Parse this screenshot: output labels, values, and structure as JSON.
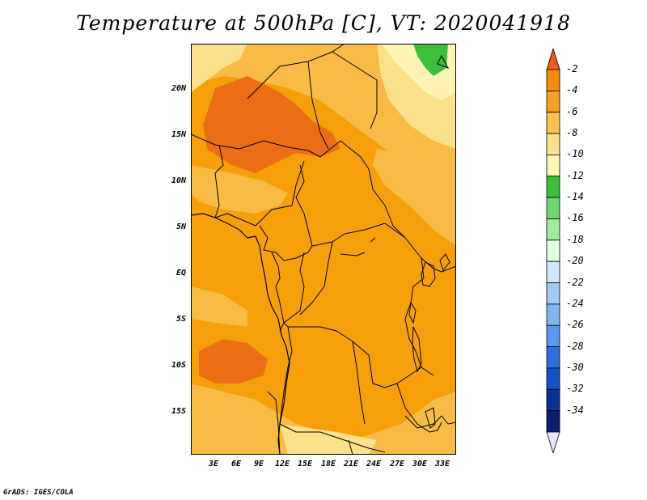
{
  "title": "Temperature at 500hPa [C], VT: 2020041918",
  "credit": "GrADS: IGES/COLA",
  "map": {
    "y_ticks": [
      "20N",
      "15N",
      "10N",
      "5N",
      "EQ",
      "5S",
      "10S",
      "15S"
    ],
    "x_ticks": [
      "3E",
      "6E",
      "9E",
      "12E",
      "15E",
      "18E",
      "21E",
      "24E",
      "27E",
      "30E",
      "33E"
    ]
  },
  "colorbar": {
    "labels": [
      "-2",
      "-4",
      "-6",
      "-8",
      "-10",
      "-12",
      "-14",
      "-16",
      "-18",
      "-20",
      "-22",
      "-24",
      "-26",
      "-28",
      "-30",
      "-32",
      "-34"
    ],
    "colors": [
      "#f05a14",
      "#f58c0a",
      "#f5a028",
      "#fac050",
      "#fae28c",
      "#fff5b4",
      "#3cbe3c",
      "#6ed66e",
      "#a0eba0",
      "#e1ffe1",
      "#d2e8fa",
      "#a0c8f0",
      "#82b4f0",
      "#5a96f0",
      "#2d6edc",
      "#1450c8",
      "#0a3296",
      "#0a1e6e",
      "#e6e6fa"
    ]
  },
  "colors": {
    "base_orange": "#f5a00a",
    "dark_orange": "#ec6e14",
    "light_orange": "#f8bc46",
    "pale_yellow": "#fde08a",
    "cream": "#fef3b4",
    "green": "#3cbe3c"
  }
}
